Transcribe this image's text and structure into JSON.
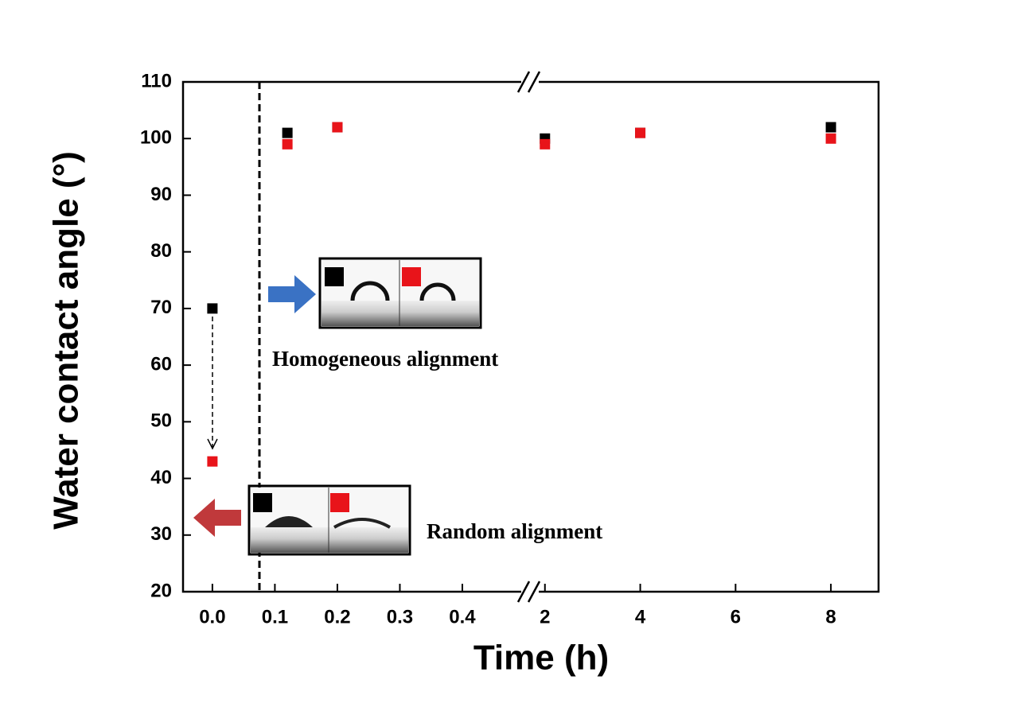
{
  "chart_data": {
    "type": "scatter",
    "xlabel": "Time (h)",
    "ylabel": "Water contact angle (°)",
    "ylim": [
      20,
      110
    ],
    "yticks": [
      20,
      30,
      40,
      50,
      60,
      70,
      80,
      90,
      100,
      110
    ],
    "x_segments": [
      {
        "xlim": [
          -0.047,
          0.507
        ],
        "xticks": [
          {
            "value": 0,
            "label": "0.0"
          },
          0.1,
          0.2,
          0.3,
          0.4
        ]
      },
      {
        "xlim": [
          1.67,
          9
        ],
        "xticks": [
          2,
          4,
          6,
          8
        ]
      }
    ],
    "series": [
      {
        "color": "#000000",
        "x": [
          0,
          0.12,
          0.2,
          2,
          4,
          8
        ],
        "values": [
          70,
          101,
          102,
          100,
          101,
          102
        ]
      },
      {
        "color": "#e8141a",
        "x": [
          0,
          0.12,
          0.2,
          2,
          4,
          8
        ],
        "values": [
          43,
          99,
          102,
          99,
          101,
          100
        ]
      }
    ],
    "annotations": [
      "Homogeneous alignment",
      "Random alignment"
    ]
  }
}
